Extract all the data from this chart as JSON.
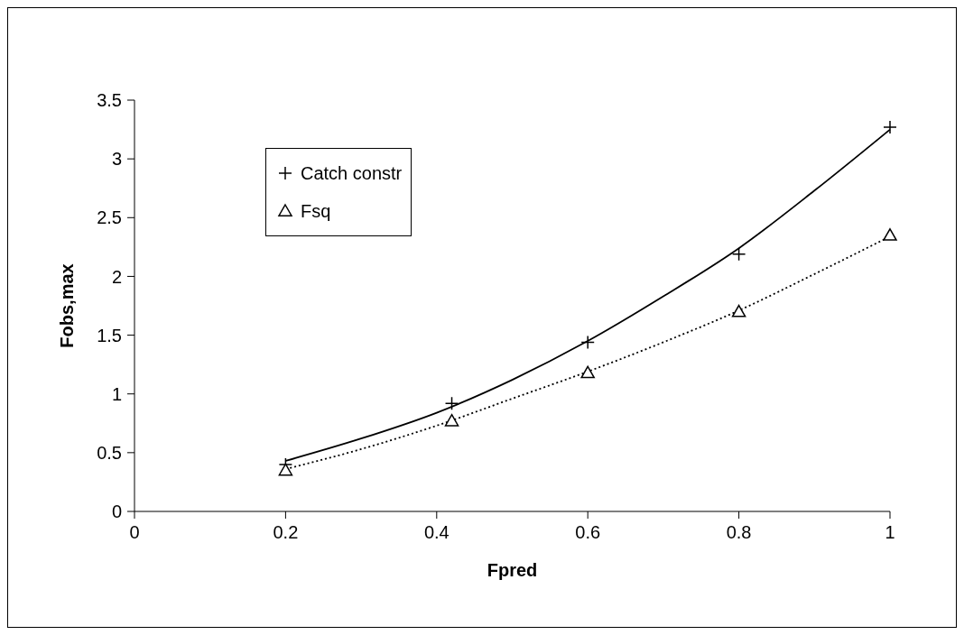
{
  "chart_data": {
    "type": "scatter",
    "xlabel": "Fpred",
    "ylabel": "Fobs,max",
    "xlim": [
      0,
      1
    ],
    "xticks": [
      0,
      0.2,
      0.4,
      0.6,
      0.8,
      1
    ],
    "ylim": [
      0,
      3.5
    ],
    "yticks": [
      0,
      0.5,
      1,
      1.5,
      2,
      2.5,
      3,
      3.5
    ],
    "grid": false,
    "legend": "top left",
    "series": [
      {
        "name": "Catch constr",
        "marker": "cross",
        "color": "#000000",
        "x": [
          0.2,
          0.42,
          0.6,
          0.8,
          1
        ],
        "values": [
          0.4,
          0.92,
          1.44,
          2.19,
          3.27
        ]
      },
      {
        "name": "Fsq",
        "marker": "triangle",
        "color": "#000000",
        "x": [
          0.2,
          0.42,
          0.6,
          0.8,
          1
        ],
        "values": [
          0.35,
          0.77,
          1.18,
          1.7,
          2.35
        ]
      },
      {
        "type": "line",
        "marker": "none",
        "line_style": "solid",
        "color": "#000000",
        "x": [
          0.2,
          0.3,
          0.4,
          0.5,
          0.6,
          0.7,
          0.8,
          0.9,
          1
        ],
        "values": [
          0.43,
          0.62,
          0.84,
          1.12,
          1.45,
          1.83,
          2.24,
          2.73,
          3.25
        ]
      },
      {
        "type": "line",
        "marker": "none",
        "line_style": "dotted",
        "color": "#000000",
        "x": [
          0.2,
          0.3,
          0.4,
          0.5,
          0.6,
          0.7,
          0.8,
          0.9,
          1
        ],
        "values": [
          0.36,
          0.53,
          0.73,
          0.96,
          1.19,
          1.44,
          1.71,
          2.02,
          2.34
        ]
      }
    ]
  }
}
